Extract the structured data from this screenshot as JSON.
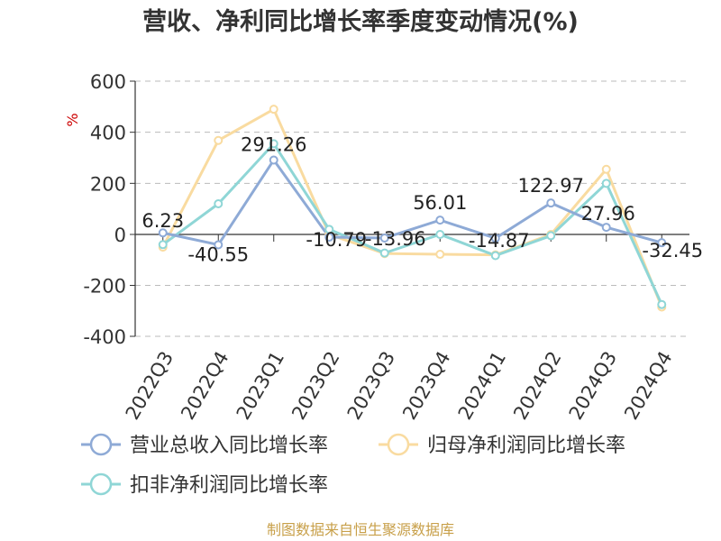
{
  "chart_data": {
    "type": "line",
    "title": "营收、净利同比增长率季度变动情况(%)",
    "ylabel": "%",
    "ylim": [
      -400,
      600
    ],
    "yticks": [
      600,
      400,
      200,
      0,
      -200,
      -400
    ],
    "grid": true,
    "legend_position": "bottom",
    "categories": [
      "2022Q3",
      "2022Q4",
      "2023Q1",
      "2023Q2",
      "2023Q3",
      "2023Q4",
      "2024Q1",
      "2024Q2",
      "2024Q3",
      "2024Q4"
    ],
    "series": [
      {
        "name": "营业总收入同比增长率",
        "color": "#8eaad6",
        "values": [
          6.23,
          -40.55,
          291.26,
          -10.79,
          -13.96,
          56.01,
          -14.87,
          122.97,
          27.96,
          -32.45
        ],
        "labels": [
          "6.23",
          "-40.55",
          "291.26",
          "-10.79",
          "-13.96",
          "56.01",
          "-14.87",
          "122.97",
          "27.96",
          "-32.45"
        ]
      },
      {
        "name": "归母净利润同比增长率",
        "color": "#f9dba0",
        "values": [
          -50,
          368,
          490,
          0,
          -75,
          -78,
          -80,
          0,
          255,
          -285
        ]
      },
      {
        "name": "扣非净利润同比增长率",
        "color": "#8fd6d6",
        "values": [
          -40,
          120,
          355,
          20,
          -73,
          0,
          -83,
          -5,
          200,
          -275
        ]
      }
    ],
    "source": "制图数据来自恒生聚源数据库"
  }
}
